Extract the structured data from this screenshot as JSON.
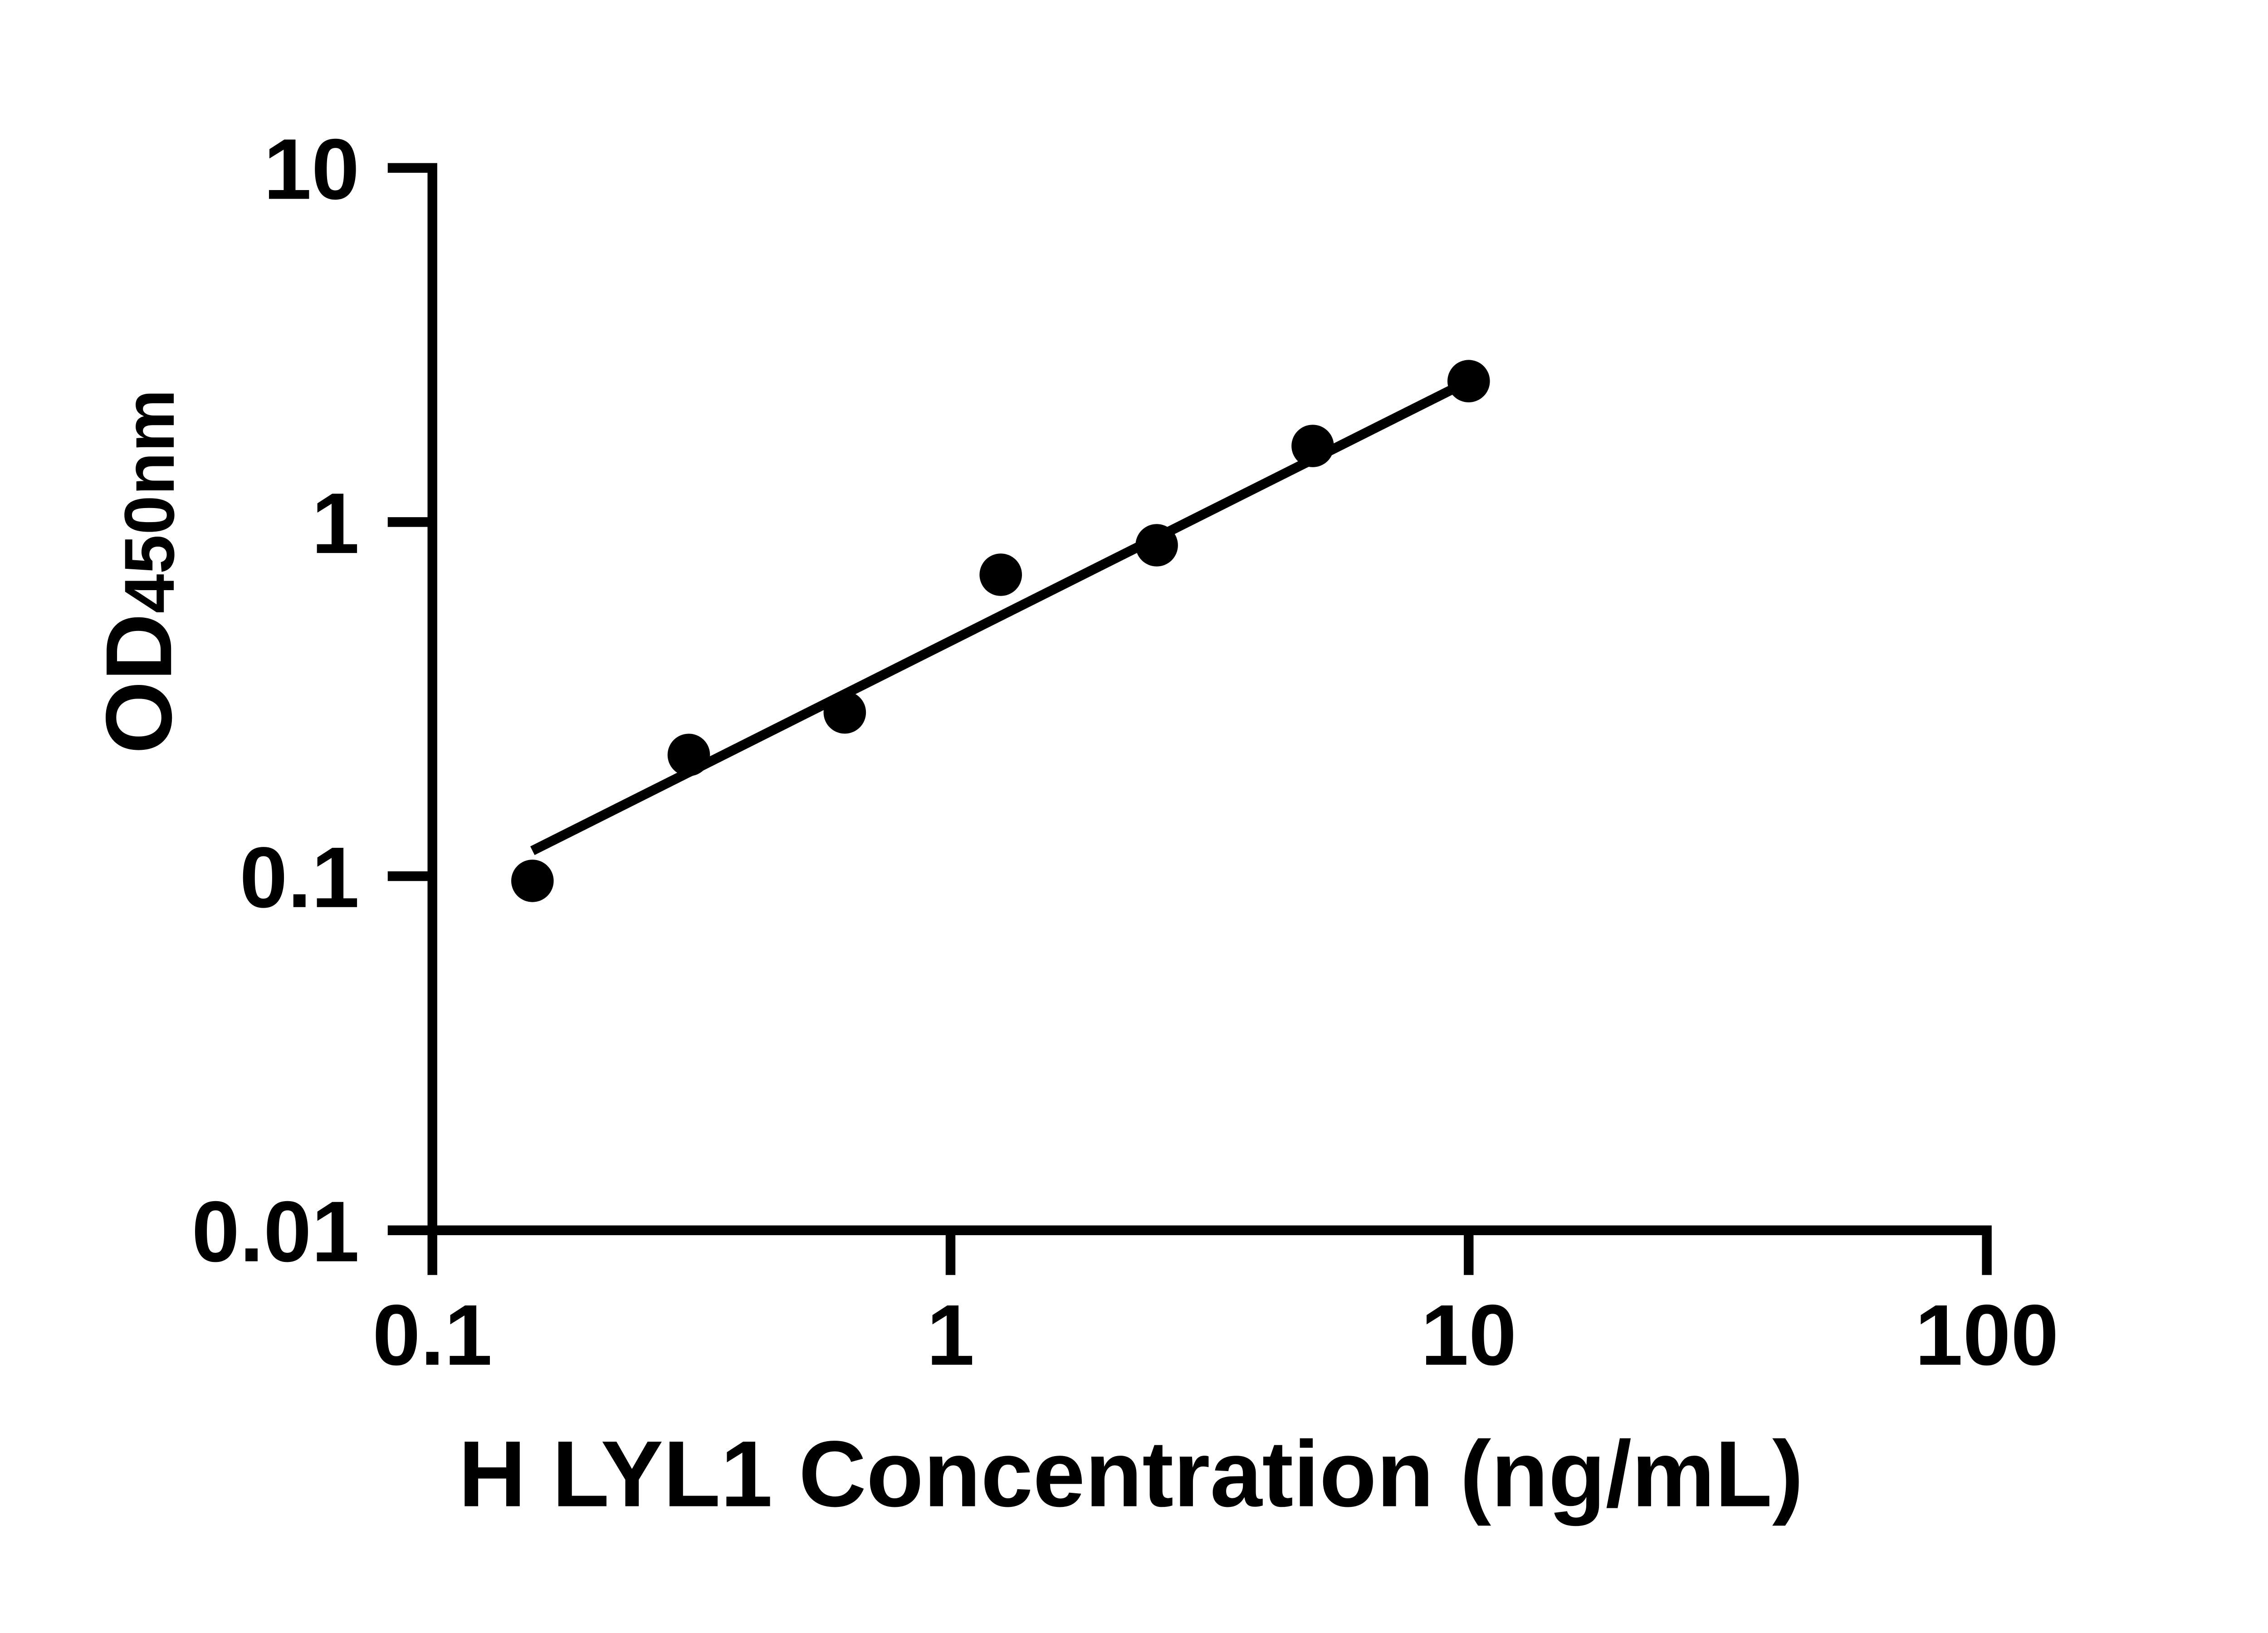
{
  "page": {
    "background": "#ffffff",
    "foreground": "#000000"
  },
  "chart_data": {
    "type": "scatter",
    "title": "",
    "xlabel": "H LYL1 Concentration (ng/mL)",
    "ylabel": "OD450nm",
    "ylabel_main": "OD",
    "ylabel_subscript": "450nm",
    "x_scale": "log",
    "y_scale": "log",
    "xlim": [
      0.1,
      100
    ],
    "ylim": [
      0.01,
      10
    ],
    "x_tick_labels": [
      "0.1",
      "1",
      "10",
      "100"
    ],
    "x_tick_values": [
      0.1,
      1,
      10,
      100
    ],
    "y_tick_labels": [
      "10",
      "1",
      "0.1",
      "0.01"
    ],
    "y_tick_values": [
      10,
      1,
      0.1,
      0.01
    ],
    "grid": false,
    "legend": null,
    "marker_color": "#000000",
    "line_color": "#000000",
    "series": [
      {
        "name": "standard-points",
        "type": "scatter",
        "marker": "filled-circle",
        "points": [
          {
            "x": 0.156,
            "y": 0.097
          },
          {
            "x": 0.3125,
            "y": 0.22
          },
          {
            "x": 0.625,
            "y": 0.29
          },
          {
            "x": 1.25,
            "y": 0.71
          },
          {
            "x": 2.5,
            "y": 0.86
          },
          {
            "x": 5,
            "y": 1.64
          },
          {
            "x": 10,
            "y": 2.5
          }
        ]
      },
      {
        "name": "fit-line",
        "type": "line",
        "points": [
          {
            "x": 0.156,
            "y": 0.118
          },
          {
            "x": 10,
            "y": 2.5
          }
        ]
      }
    ]
  }
}
